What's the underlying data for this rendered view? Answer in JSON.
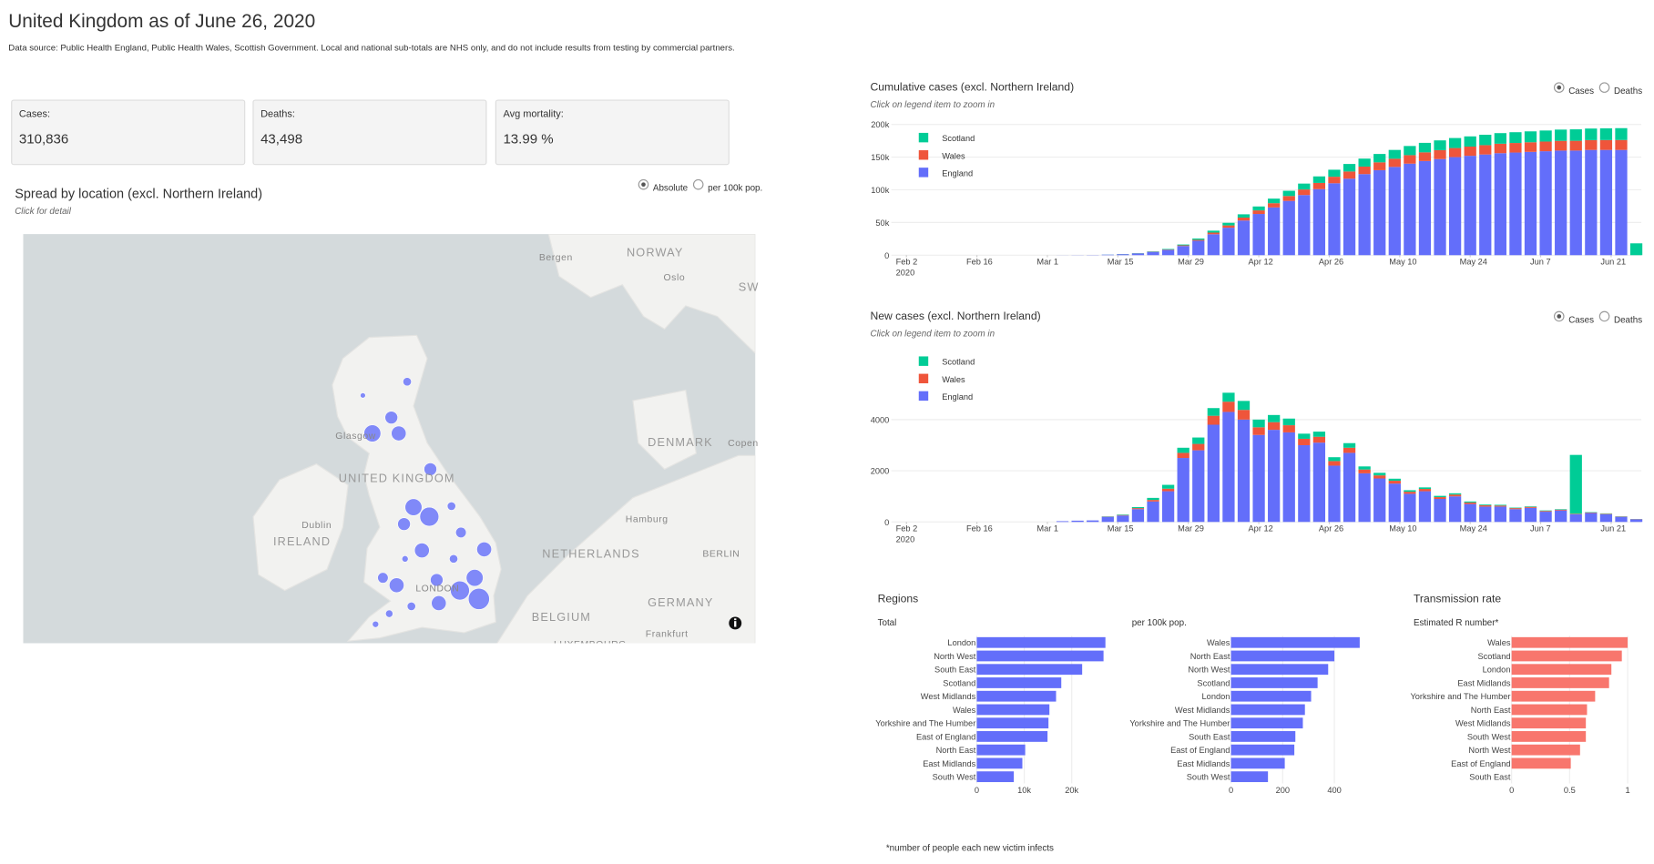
{
  "header": {
    "title": "United Kingdom as of June 26, 2020",
    "subtitle": "Data source: Public Health England, Public Health Wales, Scottish Government. Local and national sub-totals are NHS only, and do not include results from testing by commercial partners."
  },
  "stats": [
    {
      "label": "Cases:",
      "value": "310,836"
    },
    {
      "label": "Deaths:",
      "value": "43,498"
    },
    {
      "label": "Avg mortality:",
      "value": "13.99 %"
    }
  ],
  "map": {
    "title": "Spread by location (excl. Northern Ireland)",
    "hint": "Click for detail",
    "options": [
      "Absolute",
      "per 100k pop."
    ],
    "labels": [
      "Bergen",
      "NORWAY",
      "Oslo",
      "SW",
      "Glasgow",
      "UNITED KINGDOM",
      "DENMARK",
      "Copen",
      "Dublin",
      "IRELAND",
      "Hamburg",
      "NETHERLANDS",
      "BERLIN",
      "LONDON",
      "BELGIUM",
      "GERMANY",
      "Frankfurt",
      "LUXEMBOURG"
    ]
  },
  "sections": {
    "regions": "Regions",
    "transmission": "Transmission rate",
    "footnote": "*number of people each new victim infects"
  },
  "chart_data": [
    {
      "type": "stacked-bar",
      "title": "Cumulative cases (excl. Northern Ireland)",
      "subtitle": "Click on legend item to zoom in",
      "options": [
        "Cases",
        "Deaths"
      ],
      "legend": "top-left",
      "x": [
        "2020-03-01",
        "2020-03-04",
        "2020-03-07",
        "2020-03-10",
        "2020-03-13",
        "2020-03-16",
        "2020-03-19",
        "2020-03-22",
        "2020-03-25",
        "2020-03-28",
        "2020-03-31",
        "2020-04-03",
        "2020-04-06",
        "2020-04-09",
        "2020-04-12",
        "2020-04-15",
        "2020-04-18",
        "2020-04-21",
        "2020-04-24",
        "2020-04-27",
        "2020-04-30",
        "2020-05-03",
        "2020-05-06",
        "2020-05-09",
        "2020-05-12",
        "2020-05-15",
        "2020-05-18",
        "2020-05-21",
        "2020-05-24",
        "2020-05-27",
        "2020-05-30",
        "2020-06-02",
        "2020-06-05",
        "2020-06-08",
        "2020-06-11",
        "2020-06-14",
        "2020-06-17",
        "2020-06-20",
        "2020-06-23",
        "2020-06-26"
      ],
      "xlim": [
        "2020-01-30",
        "2020-06-27"
      ],
      "xticks": [
        {
          "value": "2020-02-02",
          "label": "Feb 2\n2020"
        },
        {
          "value": "2020-02-16",
          "label": "Feb 16"
        },
        {
          "value": "2020-03-01",
          "label": "Mar 1"
        },
        {
          "value": "2020-03-15",
          "label": "Mar 15"
        },
        {
          "value": "2020-03-29",
          "label": "Mar 29"
        },
        {
          "value": "2020-04-12",
          "label": "Apr 12"
        },
        {
          "value": "2020-04-26",
          "label": "Apr 26"
        },
        {
          "value": "2020-05-10",
          "label": "May 10"
        },
        {
          "value": "2020-05-24",
          "label": "May 24"
        },
        {
          "value": "2020-06-07",
          "label": "Jun 7"
        },
        {
          "value": "2020-06-21",
          "label": "Jun 21"
        }
      ],
      "ylim": [
        0,
        200000
      ],
      "yticks": [
        0,
        {
          "value": 50000,
          "label": "50k"
        },
        {
          "value": 100000,
          "label": "100k"
        },
        {
          "value": 150000,
          "label": "150k"
        },
        {
          "value": 200000,
          "label": "200k"
        }
      ],
      "grid": true,
      "series": [
        {
          "name": "England",
          "color": "#636efa",
          "values": [
            0,
            100,
            200,
            300,
            800,
            1500,
            2700,
            5000,
            8000,
            14000,
            22000,
            32000,
            42000,
            53000,
            63000,
            73000,
            83000,
            92000,
            101000,
            110000,
            117000,
            124000,
            130000,
            135000,
            140000,
            144000,
            147000,
            150000,
            152000,
            154000,
            156000,
            157000,
            158000,
            159000,
            160000,
            160000,
            161000,
            161000,
            161000,
            0
          ]
        },
        {
          "name": "Wales",
          "color": "#ef553b",
          "values": [
            0,
            0,
            0,
            0,
            0,
            100,
            200,
            400,
            600,
            1000,
            1500,
            2500,
            3500,
            4500,
            5500,
            6500,
            7500,
            8500,
            9500,
            10000,
            11000,
            11500,
            12000,
            12500,
            13000,
            13300,
            13600,
            13900,
            14100,
            14300,
            14500,
            14600,
            14700,
            14800,
            14900,
            15000,
            15000,
            15100,
            15200,
            0
          ]
        },
        {
          "name": "Scotland",
          "color": "#00cc96",
          "values": [
            0,
            0,
            0,
            0,
            100,
            200,
            300,
            500,
            900,
            1300,
            2000,
            3000,
            4000,
            5000,
            6000,
            7000,
            8000,
            9000,
            10000,
            10700,
            11500,
            12200,
            12800,
            13500,
            14000,
            14500,
            15000,
            15300,
            15600,
            15900,
            16200,
            16500,
            16700,
            16900,
            17200,
            17500,
            17700,
            17900,
            18100,
            18100
          ]
        }
      ]
    },
    {
      "type": "stacked-bar",
      "title": "New cases (excl. Northern Ireland)",
      "subtitle": "Click on legend item to zoom in",
      "options": [
        "Cases",
        "Deaths"
      ],
      "legend": "top-left",
      "x": [
        "2020-03-01",
        "2020-03-04",
        "2020-03-07",
        "2020-03-10",
        "2020-03-13",
        "2020-03-16",
        "2020-03-19",
        "2020-03-22",
        "2020-03-25",
        "2020-03-28",
        "2020-03-31",
        "2020-04-03",
        "2020-04-06",
        "2020-04-09",
        "2020-04-12",
        "2020-04-15",
        "2020-04-18",
        "2020-04-21",
        "2020-04-24",
        "2020-04-27",
        "2020-04-30",
        "2020-05-03",
        "2020-05-06",
        "2020-05-09",
        "2020-05-12",
        "2020-05-15",
        "2020-05-18",
        "2020-05-21",
        "2020-05-24",
        "2020-05-27",
        "2020-05-30",
        "2020-06-02",
        "2020-06-05",
        "2020-06-08",
        "2020-06-11",
        "2020-06-14",
        "2020-06-17",
        "2020-06-20",
        "2020-06-23",
        "2020-06-26"
      ],
      "xlim": [
        "2020-01-30",
        "2020-06-27"
      ],
      "xticks": [
        {
          "value": "2020-02-02",
          "label": "Feb 2\n2020"
        },
        {
          "value": "2020-02-16",
          "label": "Feb 16"
        },
        {
          "value": "2020-03-01",
          "label": "Mar 1"
        },
        {
          "value": "2020-03-15",
          "label": "Mar 15"
        },
        {
          "value": "2020-03-29",
          "label": "Mar 29"
        },
        {
          "value": "2020-04-12",
          "label": "Apr 12"
        },
        {
          "value": "2020-04-26",
          "label": "Apr 26"
        },
        {
          "value": "2020-05-10",
          "label": "May 10"
        },
        {
          "value": "2020-05-24",
          "label": "May 24"
        },
        {
          "value": "2020-06-07",
          "label": "Jun 7"
        },
        {
          "value": "2020-06-21",
          "label": "Jun 21"
        }
      ],
      "ylim": [
        0,
        6800
      ],
      "yticks": [
        0,
        2000,
        4000
      ],
      "grid": true,
      "series": [
        {
          "name": "England",
          "color": "#636efa",
          "values": [
            0,
            30,
            50,
            60,
            200,
            250,
            500,
            800,
            1200,
            2500,
            2800,
            3800,
            4300,
            4000,
            3400,
            3600,
            3500,
            3000,
            3100,
            2200,
            2700,
            1900,
            1700,
            1500,
            1100,
            1200,
            900,
            1000,
            700,
            600,
            600,
            500,
            550,
            400,
            450,
            300,
            350,
            300,
            200,
            100
          ]
        },
        {
          "name": "Wales",
          "color": "#ef553b",
          "values": [
            0,
            0,
            0,
            0,
            10,
            20,
            40,
            60,
            100,
            200,
            250,
            350,
            400,
            380,
            300,
            300,
            280,
            250,
            230,
            180,
            200,
            150,
            120,
            110,
            80,
            90,
            70,
            70,
            60,
            50,
            40,
            40,
            40,
            30,
            30,
            20,
            20,
            20,
            15,
            10
          ]
        },
        {
          "name": "Scotland",
          "color": "#00cc96",
          "values": [
            0,
            0,
            0,
            0,
            10,
            20,
            40,
            80,
            150,
            200,
            250,
            300,
            350,
            350,
            300,
            280,
            260,
            200,
            200,
            150,
            180,
            120,
            100,
            80,
            60,
            60,
            50,
            50,
            40,
            30,
            30,
            20,
            20,
            20,
            20,
            2300,
            15,
            15,
            10,
            5
          ]
        }
      ]
    },
    {
      "type": "barh",
      "title": "Total",
      "categories": [
        "London",
        "North West",
        "South East",
        "Scotland",
        "West Midlands",
        "Wales",
        "Yorkshire and The Humber",
        "East of England",
        "North East",
        "East Midlands",
        "South West"
      ],
      "values": [
        27100,
        26700,
        22200,
        17800,
        16700,
        15300,
        15100,
        14900,
        10200,
        9600,
        7800
      ],
      "color": "#636efa",
      "xlim": [
        0,
        28000
      ],
      "xticks": [
        0,
        {
          "value": 10000,
          "label": "10k"
        },
        {
          "value": 20000,
          "label": "20k"
        }
      ],
      "grid": true
    },
    {
      "type": "barh",
      "title": "per 100k pop.",
      "categories": [
        "Wales",
        "North East",
        "North West",
        "Scotland",
        "London",
        "West Midlands",
        "Yorkshire and The Humber",
        "South East",
        "East of England",
        "East Midlands",
        "South West"
      ],
      "values": [
        498,
        400,
        376,
        335,
        310,
        286,
        278,
        249,
        245,
        208,
        143
      ],
      "color": "#636efa",
      "xlim": [
        0,
        500
      ],
      "xticks": [
        0,
        200,
        400
      ],
      "grid": true
    },
    {
      "type": "barh",
      "title": "Estimated R number*",
      "categories": [
        "Wales",
        "Scotland",
        "London",
        "East Midlands",
        "Yorkshire and The Humber",
        "North East",
        "West Midlands",
        "South West",
        "North West",
        "East of England",
        "South East"
      ],
      "values": [
        1.0,
        0.95,
        0.86,
        0.84,
        0.72,
        0.65,
        0.64,
        0.64,
        0.59,
        0.51,
        null
      ],
      "color": "#f8766d",
      "xlim": [
        0,
        1
      ],
      "xticks": [
        0,
        0.5,
        1
      ],
      "grid": true
    }
  ]
}
